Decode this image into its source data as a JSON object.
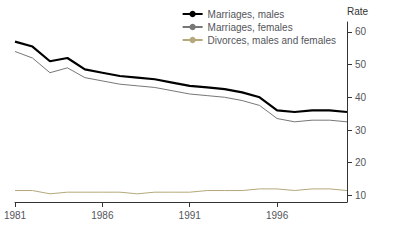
{
  "chart_data": {
    "type": "line",
    "x": [
      1981,
      1982,
      1983,
      1984,
      1985,
      1986,
      1987,
      1988,
      1989,
      1990,
      1991,
      1992,
      1993,
      1994,
      1995,
      1996,
      1997,
      1998,
      1999,
      2000
    ],
    "series": [
      {
        "name": "Marriages, males",
        "color": "#000000",
        "values": [
          57.0,
          55.5,
          51.0,
          52.0,
          48.5,
          47.5,
          46.5,
          46.0,
          45.5,
          44.5,
          43.5,
          43.0,
          42.5,
          41.5,
          40.0,
          36.0,
          35.5,
          36.0,
          36.0,
          35.5
        ]
      },
      {
        "name": "Marriages, females",
        "color": "#777777",
        "values": [
          54.0,
          52.0,
          47.5,
          49.0,
          46.0,
          45.0,
          44.0,
          43.5,
          43.0,
          42.0,
          41.0,
          40.5,
          40.0,
          39.0,
          37.5,
          33.5,
          32.5,
          33.0,
          33.0,
          32.5
        ]
      },
      {
        "name": "Divorces, males and females",
        "color": "#b5a87a",
        "values": [
          11.5,
          11.5,
          10.5,
          11.0,
          11.0,
          11.0,
          11.0,
          10.5,
          11.0,
          11.0,
          11.0,
          11.5,
          11.5,
          11.5,
          12.0,
          12.0,
          11.5,
          12.0,
          12.0,
          11.5
        ]
      }
    ],
    "xlim": [
      1981,
      2000
    ],
    "xticks": [
      1981,
      1986,
      1991,
      1996
    ],
    "ylim": [
      8,
      63
    ],
    "yticks": [
      10,
      20,
      30,
      40,
      50,
      60
    ],
    "ylabel": "Rate",
    "grid": false,
    "legend": "upper right"
  }
}
